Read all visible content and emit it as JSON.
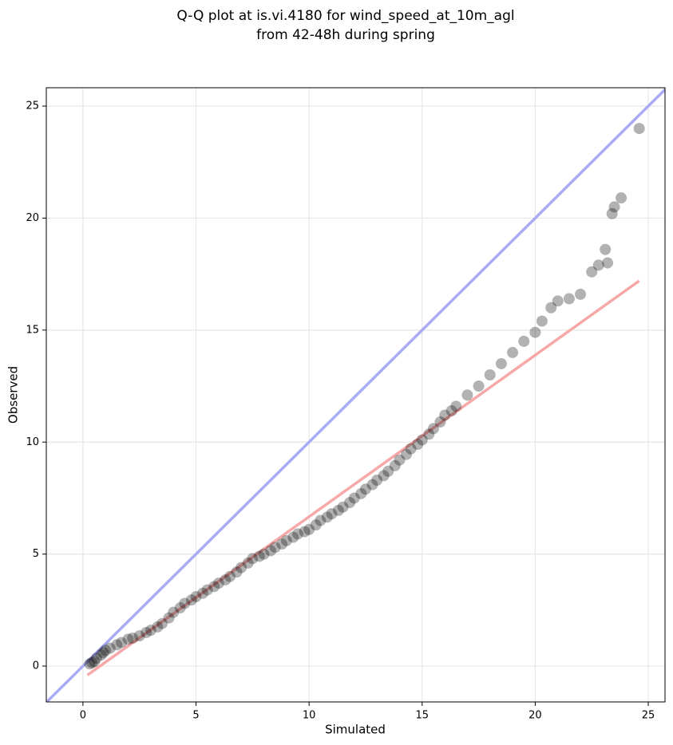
{
  "chart_data": {
    "type": "scatter",
    "title": [
      "Q-Q plot at is.vi.4180 for wind_speed_at_10m_agl",
      "from 42-48h during spring"
    ],
    "x_label": "Simulated",
    "y_label": "Observed",
    "xlim": [
      -1.62,
      25.74
    ],
    "ylim": [
      -1.6,
      25.82
    ],
    "xticks": [
      0,
      5,
      10,
      15,
      20,
      25
    ],
    "yticks": [
      0,
      5,
      10,
      15,
      20,
      25
    ],
    "grid": true,
    "points": {
      "color": "#000000",
      "opacity": 0.3,
      "x": [
        0.3,
        0.4,
        0.5,
        0.6,
        0.8,
        0.9,
        1,
        1.2,
        1.5,
        1.7,
        2,
        2.2,
        2.5,
        2.8,
        3,
        3.3,
        3.5,
        3.8,
        4,
        4.3,
        4.5,
        4.8,
        5,
        5.3,
        5.5,
        5.8,
        6,
        6.3,
        6.5,
        6.8,
        7,
        7.3,
        7.5,
        7.8,
        8,
        8.3,
        8.5,
        8.8,
        9,
        9.3,
        9.5,
        9.8,
        10,
        10.3,
        10.5,
        10.8,
        11,
        11.3,
        11.5,
        11.8,
        12,
        12.3,
        12.5,
        12.8,
        13,
        13.3,
        13.5,
        13.8,
        14,
        14.3,
        14.5,
        14.8,
        15,
        15.3,
        15.5,
        15.8,
        16,
        16.3,
        16.5,
        17,
        17.5,
        18,
        18.5,
        19,
        19.5,
        20,
        20.3,
        20.7,
        21,
        21.5,
        22,
        22.5,
        22.8,
        23.2,
        23.1,
        23.4,
        23.5,
        23.8,
        24.6
      ],
      "y": [
        0.1,
        0.15,
        0.2,
        0.35,
        0.5,
        0.6,
        0.7,
        0.8,
        0.95,
        1.05,
        1.2,
        1.25,
        1.35,
        1.5,
        1.6,
        1.75,
        1.9,
        2.15,
        2.4,
        2.6,
        2.8,
        2.95,
        3.1,
        3.25,
        3.4,
        3.55,
        3.7,
        3.85,
        4.0,
        4.2,
        4.4,
        4.6,
        4.8,
        4.9,
        5.0,
        5.15,
        5.3,
        5.45,
        5.6,
        5.75,
        5.9,
        6.0,
        6.1,
        6.3,
        6.5,
        6.65,
        6.8,
        6.95,
        7.1,
        7.3,
        7.5,
        7.7,
        7.9,
        8.1,
        8.3,
        8.5,
        8.7,
        8.95,
        9.2,
        9.45,
        9.7,
        9.9,
        10.1,
        10.35,
        10.6,
        10.9,
        11.2,
        11.4,
        11.6,
        12.1,
        12.5,
        13.0,
        13.5,
        14.0,
        14.5,
        14.9,
        15.4,
        16.0,
        16.3,
        16.4,
        16.6,
        17.6,
        17.9,
        18.0,
        18.6,
        20.2,
        20.5,
        20.9,
        24.0
      ]
    },
    "lines": [
      {
        "color": "#a9abf4",
        "x": [
          -2,
          26
        ],
        "y": [
          -2,
          26
        ]
      },
      {
        "color": "#f7a9a9",
        "x": [
          0.2,
          24.6
        ],
        "y": [
          -0.4,
          17.2
        ]
      }
    ]
  }
}
